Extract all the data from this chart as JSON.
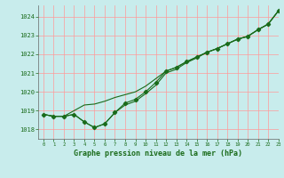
{
  "title": "Graphe pression niveau de la mer (hPa)",
  "background_color": "#c8ecec",
  "grid_color": "#ff9999",
  "line_color": "#1a6b1a",
  "xlim": [
    -0.5,
    23
  ],
  "ylim": [
    1017.5,
    1024.6
  ],
  "xticks": [
    0,
    1,
    2,
    3,
    4,
    5,
    6,
    7,
    8,
    9,
    10,
    11,
    12,
    13,
    14,
    15,
    16,
    17,
    18,
    19,
    20,
    21,
    22,
    23
  ],
  "yticks": [
    1018,
    1019,
    1020,
    1021,
    1022,
    1023,
    1024
  ],
  "series_markers": {
    "x": [
      0,
      1,
      2,
      3,
      4,
      5,
      6,
      7,
      8,
      9,
      10,
      11,
      12,
      13,
      14,
      15,
      16,
      17,
      18,
      19,
      20,
      21,
      22,
      23
    ],
    "y": [
      1018.8,
      1018.7,
      1018.7,
      1018.8,
      1018.4,
      1018.1,
      1018.3,
      1018.9,
      1019.4,
      1019.6,
      1020.0,
      1020.5,
      1021.1,
      1021.3,
      1021.6,
      1021.85,
      1022.1,
      1022.3,
      1022.55,
      1022.8,
      1022.95,
      1023.3,
      1023.6,
      1024.3
    ]
  },
  "series_upper": {
    "x": [
      0,
      1,
      2,
      3,
      4,
      5,
      6,
      7,
      8,
      9,
      10,
      11,
      12,
      13,
      14,
      15,
      16,
      17,
      18,
      19,
      20,
      21,
      22,
      23
    ],
    "y": [
      1018.8,
      1018.7,
      1018.7,
      1019.0,
      1019.3,
      1019.35,
      1019.5,
      1019.7,
      1019.85,
      1020.0,
      1020.3,
      1020.7,
      1021.1,
      1021.3,
      1021.6,
      1021.85,
      1022.1,
      1022.3,
      1022.55,
      1022.8,
      1022.95,
      1023.3,
      1023.6,
      1024.3
    ]
  },
  "series_lower": {
    "x": [
      0,
      1,
      2,
      3,
      4,
      5,
      6,
      7,
      8,
      9,
      10,
      11,
      12,
      13,
      14,
      15,
      16,
      17,
      18,
      19,
      20,
      21,
      22,
      23
    ],
    "y": [
      1018.8,
      1018.7,
      1018.7,
      1018.8,
      1018.4,
      1018.1,
      1018.3,
      1018.9,
      1019.3,
      1019.5,
      1019.9,
      1020.35,
      1021.0,
      1021.2,
      1021.55,
      1021.8,
      1022.1,
      1022.3,
      1022.55,
      1022.8,
      1022.95,
      1023.3,
      1023.6,
      1024.3
    ]
  }
}
